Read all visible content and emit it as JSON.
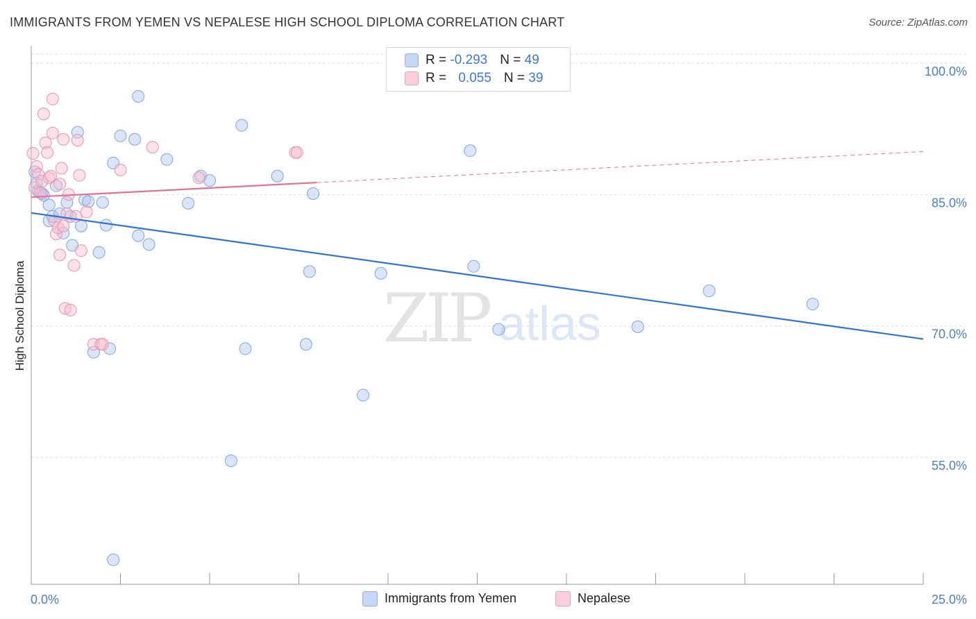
{
  "title": "IMMIGRANTS FROM YEMEN VS NEPALESE HIGH SCHOOL DIPLOMA CORRELATION CHART",
  "source": "Source: ZipAtlas.com",
  "watermark": {
    "zip": "ZIP",
    "atlas": "atlas"
  },
  "legend": {
    "rows": [
      {
        "r_label": "R = ",
        "r_value": "-0.293",
        "n_label": "N = ",
        "n_value": "49",
        "color": "#aec6ef"
      },
      {
        "r_label": "R = ",
        "r_value": "0.055",
        "n_label": "N = ",
        "n_value": "39",
        "color": "#f6bccd"
      }
    ]
  },
  "bottom_legend": {
    "series1": "Immigrants from Yemen",
    "series2": "Nepalese"
  },
  "chart_data": {
    "type": "scatter",
    "title": "IMMIGRANTS FROM YEMEN VS NEPALESE HIGH SCHOOL DIPLOMA CORRELATION CHART",
    "xlabel": "",
    "ylabel": "High School Diploma",
    "xlim": [
      0,
      25
    ],
    "ylim": [
      40.5,
      101.5
    ],
    "x_tick_labels": [
      "0.0%",
      "25.0%"
    ],
    "y_ticks": [
      {
        "value": 100,
        "label": "100.0%"
      },
      {
        "value": 85,
        "label": "85.0%"
      },
      {
        "value": 70,
        "label": "70.0%"
      },
      {
        "value": 55,
        "label": "55.0%"
      }
    ],
    "grid": true,
    "series": [
      {
        "name": "Immigrants from Yemen",
        "color": "#aec6ef",
        "edge": "#7fa6e0",
        "line_color": "#2f74d0",
        "trend": {
          "x": [
            0,
            25
          ],
          "y": [
            82.9,
            68.5
          ],
          "dashed_from": null
        },
        "points": [
          [
            0.1,
            87.6
          ],
          [
            0.15,
            86.3
          ],
          [
            0.2,
            85.4
          ],
          [
            0.3,
            85.1
          ],
          [
            0.35,
            84.9
          ],
          [
            0.5,
            83.8
          ],
          [
            0.5,
            82.0
          ],
          [
            0.6,
            82.5
          ],
          [
            0.7,
            86.0
          ],
          [
            0.8,
            82.8
          ],
          [
            0.9,
            80.6
          ],
          [
            1.0,
            84.1
          ],
          [
            1.1,
            82.5
          ],
          [
            1.15,
            79.2
          ],
          [
            1.3,
            92.1
          ],
          [
            1.4,
            81.4
          ],
          [
            1.5,
            84.4
          ],
          [
            1.6,
            84.2
          ],
          [
            1.75,
            67.0
          ],
          [
            1.9,
            78.4
          ],
          [
            2.0,
            84.1
          ],
          [
            2.1,
            81.5
          ],
          [
            2.2,
            67.4
          ],
          [
            2.3,
            88.6
          ],
          [
            2.3,
            43.3
          ],
          [
            2.5,
            91.7
          ],
          [
            2.9,
            91.3
          ],
          [
            3.0,
            80.3
          ],
          [
            3.0,
            96.2
          ],
          [
            3.3,
            79.3
          ],
          [
            3.8,
            89.0
          ],
          [
            4.4,
            84.0
          ],
          [
            4.75,
            87.1
          ],
          [
            5.0,
            86.6
          ],
          [
            5.6,
            54.6
          ],
          [
            5.9,
            92.9
          ],
          [
            6.0,
            67.4
          ],
          [
            6.9,
            87.1
          ],
          [
            7.7,
            67.9
          ],
          [
            7.8,
            76.2
          ],
          [
            7.9,
            85.1
          ],
          [
            9.3,
            62.1
          ],
          [
            9.8,
            76.0
          ],
          [
            12.3,
            90.0
          ],
          [
            12.4,
            76.8
          ],
          [
            13.1,
            69.6
          ],
          [
            17.0,
            69.9
          ],
          [
            19.0,
            74.0
          ],
          [
            21.9,
            72.5
          ]
        ]
      },
      {
        "name": "Nepalese",
        "color": "#f6bccd",
        "edge": "#ea94ae",
        "line_color": "#e46f97",
        "trend": {
          "x": [
            0,
            25
          ],
          "y": [
            84.7,
            89.9
          ],
          "dashed_from": 8.0
        },
        "points": [
          [
            0.05,
            89.7
          ],
          [
            0.1,
            85.8
          ],
          [
            0.15,
            88.2
          ],
          [
            0.2,
            87.3
          ],
          [
            0.25,
            85.2
          ],
          [
            0.3,
            86.5
          ],
          [
            0.35,
            94.2
          ],
          [
            0.4,
            90.9
          ],
          [
            0.45,
            89.8
          ],
          [
            0.5,
            86.9
          ],
          [
            0.55,
            87.1
          ],
          [
            0.6,
            92.0
          ],
          [
            0.6,
            95.9
          ],
          [
            0.65,
            82.0
          ],
          [
            0.7,
            80.5
          ],
          [
            0.75,
            81.2
          ],
          [
            0.8,
            78.1
          ],
          [
            0.8,
            86.2
          ],
          [
            0.85,
            88.0
          ],
          [
            0.9,
            91.3
          ],
          [
            0.9,
            81.4
          ],
          [
            0.95,
            72.0
          ],
          [
            1.0,
            82.8
          ],
          [
            1.05,
            85.0
          ],
          [
            1.1,
            71.8
          ],
          [
            1.2,
            76.9
          ],
          [
            1.25,
            82.5
          ],
          [
            1.3,
            91.2
          ],
          [
            1.35,
            87.2
          ],
          [
            1.4,
            78.6
          ],
          [
            1.55,
            83.0
          ],
          [
            1.75,
            67.9
          ],
          [
            1.95,
            67.9
          ],
          [
            2.0,
            67.9
          ],
          [
            2.5,
            87.8
          ],
          [
            3.4,
            90.4
          ],
          [
            4.7,
            86.9
          ],
          [
            7.4,
            89.8
          ],
          [
            7.45,
            89.8
          ]
        ]
      }
    ]
  }
}
